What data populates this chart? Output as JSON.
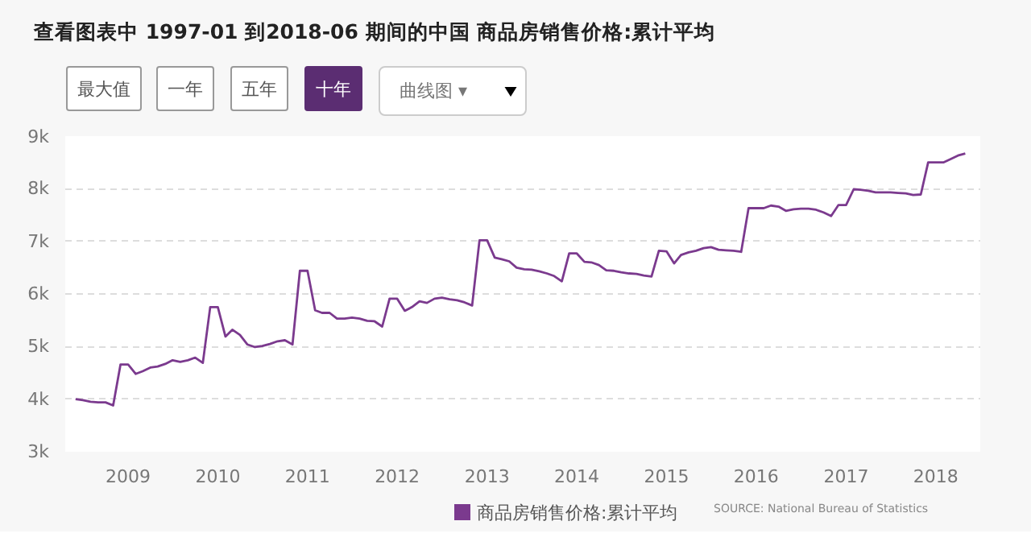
{
  "chart_data": {
    "type": "line",
    "title": "查看图表中 1997-01 到2018-06 期间的中国 商品房销售价格:累计平均",
    "annotations": [
      "最大值",
      "一年",
      "五年",
      "十年",
      "曲线图 ▾",
      "SOURCE: National Bureau of Statistics"
    ],
    "x": [
      "2008-06",
      "2008-07",
      "2008-08",
      "2008-09",
      "2008-10",
      "2008-11",
      "2008-12",
      "2009-01",
      "2009-02",
      "2009-03",
      "2009-04",
      "2009-05",
      "2009-06",
      "2009-07",
      "2009-08",
      "2009-09",
      "2009-10",
      "2009-11",
      "2009-12",
      "2010-01",
      "2010-02",
      "2010-03",
      "2010-04",
      "2010-05",
      "2010-06",
      "2010-07",
      "2010-08",
      "2010-09",
      "2010-10",
      "2010-11",
      "2010-12",
      "2011-01",
      "2011-02",
      "2011-03",
      "2011-04",
      "2011-05",
      "2011-06",
      "2011-07",
      "2011-08",
      "2011-09",
      "2011-10",
      "2011-11",
      "2011-12",
      "2012-01",
      "2012-02",
      "2012-03",
      "2012-04",
      "2012-05",
      "2012-06",
      "2012-07",
      "2012-08",
      "2012-09",
      "2012-10",
      "2012-11",
      "2012-12",
      "2013-01",
      "2013-02",
      "2013-03",
      "2013-04",
      "2013-05",
      "2013-06",
      "2013-07",
      "2013-08",
      "2013-09",
      "2013-10",
      "2013-11",
      "2013-12",
      "2014-01",
      "2014-02",
      "2014-03",
      "2014-04",
      "2014-05",
      "2014-06",
      "2014-07",
      "2014-08",
      "2014-09",
      "2014-10",
      "2014-11",
      "2014-12",
      "2015-01",
      "2015-02",
      "2015-03",
      "2015-04",
      "2015-05",
      "2015-06",
      "2015-07",
      "2015-08",
      "2015-09",
      "2015-10",
      "2015-11",
      "2015-12",
      "2016-01",
      "2016-02",
      "2016-03",
      "2016-04",
      "2016-05",
      "2016-06",
      "2016-07",
      "2016-08",
      "2016-09",
      "2016-10",
      "2016-11",
      "2016-12",
      "2017-01",
      "2017-02",
      "2017-03",
      "2017-04",
      "2017-05",
      "2017-06",
      "2017-07",
      "2017-08",
      "2017-09",
      "2017-10",
      "2017-11",
      "2017-12",
      "2018-01",
      "2018-02",
      "2018-03",
      "2018-04",
      "2018-05"
    ],
    "series": [
      {
        "name": "商品房销售价格:累计平均",
        "color": "#7b3a8e",
        "values": [
          4000,
          3980,
          3950,
          3940,
          3940,
          3880,
          4660,
          4660,
          4480,
          4530,
          4600,
          4620,
          4670,
          4740,
          4710,
          4740,
          4790,
          4690,
          5750,
          5750,
          5190,
          5320,
          5220,
          5040,
          4990,
          5010,
          5050,
          5100,
          5120,
          5040,
          6440,
          6440,
          5690,
          5640,
          5640,
          5530,
          5530,
          5550,
          5530,
          5490,
          5480,
          5380,
          5910,
          5910,
          5680,
          5750,
          5860,
          5830,
          5910,
          5930,
          5900,
          5880,
          5840,
          5780,
          7020,
          7020,
          6690,
          6660,
          6620,
          6500,
          6470,
          6460,
          6430,
          6390,
          6340,
          6240,
          6770,
          6770,
          6610,
          6600,
          6550,
          6450,
          6440,
          6410,
          6390,
          6380,
          6350,
          6330,
          6820,
          6810,
          6580,
          6740,
          6790,
          6820,
          6870,
          6890,
          6840,
          6830,
          6820,
          6800,
          7630,
          7630,
          7630,
          7680,
          7660,
          7580,
          7610,
          7620,
          7620,
          7600,
          7550,
          7480,
          7690,
          7690,
          7990,
          7980,
          7960,
          7930,
          7930,
          7930,
          7920,
          7910,
          7880,
          7890,
          8500,
          8500,
          8500,
          8560,
          8630,
          8670
        ]
      }
    ],
    "xlim": [
      "2008-04-20",
      "2018-07-01"
    ],
    "xticks": [
      {
        "value": "2009-01-01",
        "label": "2009"
      },
      {
        "value": "2010-01-01",
        "label": "2010"
      },
      {
        "value": "2011-01-01",
        "label": "2011"
      },
      {
        "value": "2012-01-01",
        "label": "2012"
      },
      {
        "value": "2013-01-01",
        "label": "2013"
      },
      {
        "value": "2014-01-01",
        "label": "2014"
      },
      {
        "value": "2015-01-01",
        "label": "2015"
      },
      {
        "value": "2016-01-01",
        "label": "2016"
      },
      {
        "value": "2017-01-01",
        "label": "2017"
      },
      {
        "value": "2018-01-01",
        "label": "2018"
      }
    ],
    "ylim": [
      3000,
      9000
    ],
    "yticks": [
      {
        "value": 3000,
        "label": "3k"
      },
      {
        "value": 4000,
        "label": "4k"
      },
      {
        "value": 5000,
        "label": "5k"
      },
      {
        "value": 6000,
        "label": "6k"
      },
      {
        "value": 7000,
        "label": "7k"
      },
      {
        "value": 8000,
        "label": "8k"
      },
      {
        "value": 9000,
        "label": "9k"
      }
    ],
    "grid": "y",
    "legend": "bottom",
    "line_style": "solid",
    "marker": "none"
  }
}
